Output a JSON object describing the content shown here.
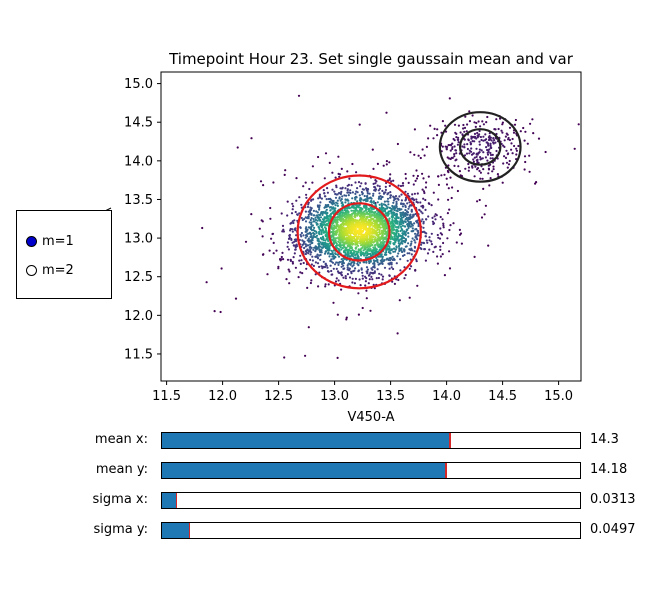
{
  "chart_data": {
    "type": "scatter",
    "title": "Timepoint Hour 23. Set single gaussain mean and var",
    "xlabel": "V450-A",
    "ylabel": "",
    "xlim": [
      11.45,
      15.2
    ],
    "ylim": [
      11.15,
      15.15
    ],
    "xticks": [
      "11.5",
      "12.0",
      "12.5",
      "13.0",
      "13.5",
      "14.0",
      "14.5",
      "15.0"
    ],
    "yticks": [
      "11.5",
      "12.0",
      "12.5",
      "13.0",
      "13.5",
      "14.0",
      "14.5",
      "15.0"
    ],
    "grid": false,
    "colormap": "viridis",
    "clusters": [
      {
        "name": "m=1",
        "mean": [
          13.23,
          13.1
        ],
        "sd": [
          0.28,
          0.26
        ],
        "count": 3200,
        "corr": 0.12
      },
      {
        "name": "m=2",
        "mean": [
          14.3,
          14.18
        ],
        "sd": [
          0.21,
          0.2
        ],
        "count": 330,
        "corr": 0.05
      }
    ],
    "ellipses": [
      {
        "center": [
          13.22,
          13.08
        ],
        "rx": 0.55,
        "ry": 0.73,
        "color": "#e31a1c"
      },
      {
        "center": [
          13.22,
          13.08
        ],
        "rx": 0.27,
        "ry": 0.37,
        "color": "#e31a1c"
      },
      {
        "center": [
          14.3,
          14.18
        ],
        "rx": 0.36,
        "ry": 0.45,
        "color": "#222222"
      },
      {
        "center": [
          14.3,
          14.18
        ],
        "rx": 0.18,
        "ry": 0.23,
        "color": "#222222"
      }
    ]
  },
  "radio": {
    "options": [
      {
        "label": "m=1",
        "selected": true,
        "color": "#0000cc"
      },
      {
        "label": "m=2",
        "selected": false,
        "color": "#ffffff"
      }
    ]
  },
  "sliders": [
    {
      "label": "mean x:",
      "value_text": "14.3",
      "fraction": 0.69
    },
    {
      "label": "mean y:",
      "value_text": "14.18",
      "fraction": 0.68
    },
    {
      "label": "sigma x:",
      "value_text": "0.0313",
      "fraction": 0.035
    },
    {
      "label": "sigma y:",
      "value_text": "0.0497",
      "fraction": 0.066
    }
  ]
}
